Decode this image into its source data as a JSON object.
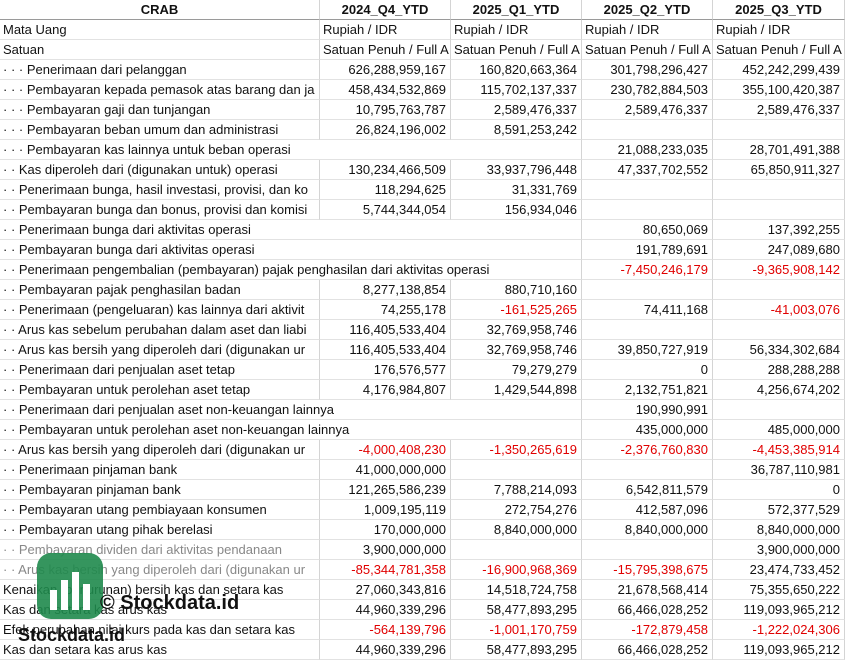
{
  "header": [
    "CRAB",
    "2024_Q4_YTD",
    "2025_Q1_YTD",
    "2025_Q2_YTD",
    "2025_Q3_YTD"
  ],
  "rows": [
    [
      "Mata Uang",
      "Rupiah / IDR",
      "Rupiah / IDR",
      "Rupiah / IDR",
      "Rupiah / IDR"
    ],
    [
      "Satuan",
      "Satuan Penuh / Full A",
      "Satuan Penuh / Full A",
      "Satuan Penuh / Full A",
      "Satuan Penuh / Full A"
    ],
    [
      "· · · Penerimaan dari pelanggan",
      "626,288,959,167",
      "160,820,663,364",
      "301,798,296,427",
      "452,242,299,439"
    ],
    [
      "· · · Pembayaran kepada pemasok atas barang dan ja",
      "458,434,532,869",
      "115,702,137,337",
      "230,782,884,503",
      "355,100,420,387"
    ],
    [
      "· · · Pembayaran gaji dan tunjangan",
      "10,795,763,787",
      "2,589,476,337",
      "2,589,476,337",
      "2,589,476,337"
    ],
    [
      "· · · Pembayaran beban umum dan administrasi",
      "26,824,196,002",
      "8,591,253,242",
      null,
      null
    ],
    [
      "· · · Pembayaran kas lainnya untuk beban operasi",
      null,
      null,
      "21,088,233,035",
      "28,701,491,388"
    ],
    [
      "· · Kas diperoleh dari (digunakan untuk) operasi",
      "130,234,466,509",
      "33,937,796,448",
      "47,337,702,552",
      "65,850,911,327"
    ],
    [
      "· · Penerimaan bunga, hasil investasi, provisi, dan ko",
      "118,294,625",
      "31,331,769",
      null,
      null
    ],
    [
      "· · Pembayaran bunga dan bonus, provisi dan komisi",
      "5,744,344,054",
      "156,934,046",
      null,
      null
    ],
    [
      "· · Penerimaan bunga dari aktivitas operasi",
      null,
      null,
      "80,650,069",
      "137,392,255"
    ],
    [
      "· · Pembayaran bunga dari aktivitas operasi",
      null,
      null,
      "191,789,691",
      "247,089,680"
    ],
    [
      "· · Penerimaan pengembalian (pembayaran) pajak penghasilan dari aktivitas operasi",
      null,
      null,
      "-7,450,246,179",
      "-9,365,908,142"
    ],
    [
      "· · Pembayaran pajak penghasilan badan",
      "8,277,138,854",
      "880,710,160",
      null,
      null
    ],
    [
      "· · Penerimaan (pengeluaran) kas lainnya dari aktivit",
      "74,255,178",
      "-161,525,265",
      "74,411,168",
      "-41,003,076"
    ],
    [
      "· · Arus kas sebelum perubahan dalam aset dan liabi",
      "116,405,533,404",
      "32,769,958,746",
      null,
      null
    ],
    [
      "· · Arus kas bersih yang diperoleh dari (digunakan ur",
      "116,405,533,404",
      "32,769,958,746",
      "39,850,727,919",
      "56,334,302,684"
    ],
    [
      "· · Penerimaan dari penjualan aset tetap",
      "176,576,577",
      "79,279,279",
      "0",
      "288,288,288"
    ],
    [
      "· · Pembayaran untuk perolehan aset tetap",
      "4,176,984,807",
      "1,429,544,898",
      "2,132,751,821",
      "4,256,674,202"
    ],
    [
      "· · Penerimaan dari penjualan aset non-keuangan lainnya",
      null,
      null,
      "190,990,991",
      null
    ],
    [
      "· · Pembayaran untuk perolehan aset non-keuangan lainnya",
      null,
      null,
      "435,000,000",
      "485,000,000"
    ],
    [
      "· · Arus kas bersih yang diperoleh dari (digunakan ur",
      "-4,000,408,230",
      "-1,350,265,619",
      "-2,376,760,830",
      "-4,453,385,914"
    ],
    [
      "· · Penerimaan pinjaman bank",
      "41,000,000,000",
      null,
      null,
      "36,787,110,981"
    ],
    [
      "· · Pembayaran pinjaman bank",
      "121,265,586,239",
      "7,788,214,093",
      "6,542,811,579",
      "0"
    ],
    [
      "· · Pembayaran utang pembiayaan konsumen",
      "1,009,195,119",
      "272,754,276",
      "412,587,096",
      "572,377,529"
    ],
    [
      "· · Pembayaran utang pihak berelasi",
      "170,000,000",
      "8,840,000,000",
      "8,840,000,000",
      "8,840,000,000"
    ],
    [
      "· · Pembayaran dividen dari aktivitas pendanaan",
      "3,900,000,000",
      null,
      null,
      "3,900,000,000"
    ],
    [
      "· · Arus kas bersih yang diperoleh dari (digunakan ur",
      "-85,344,781,358",
      "-16,900,968,369",
      "-15,795,398,675",
      "23,474,733,452"
    ],
    [
      "Kenaikan (penurunan) bersih kas dan setara kas",
      "27,060,343,816",
      "14,518,724,758",
      "21,678,568,414",
      "75,355,650,222"
    ],
    [
      "Kas dan setara kas arus kas",
      "44,960,339,296",
      "58,477,893,295",
      "66,466,028,252",
      "119,093,965,212"
    ],
    [
      "Efek perubahan nilai kurs pada kas dan setara kas",
      "-564,139,796",
      "-1,001,170,759",
      "-172,879,458",
      "-1,222,024,306"
    ],
    [
      "Kas dan setara kas arus kas",
      "44,960,339,296",
      "58,477,893,295",
      "66,466,028,252",
      "119,093,965,212"
    ]
  ],
  "watermark": {
    "caption": "© Stockdata.id",
    "logo": "Stockdata.id"
  }
}
